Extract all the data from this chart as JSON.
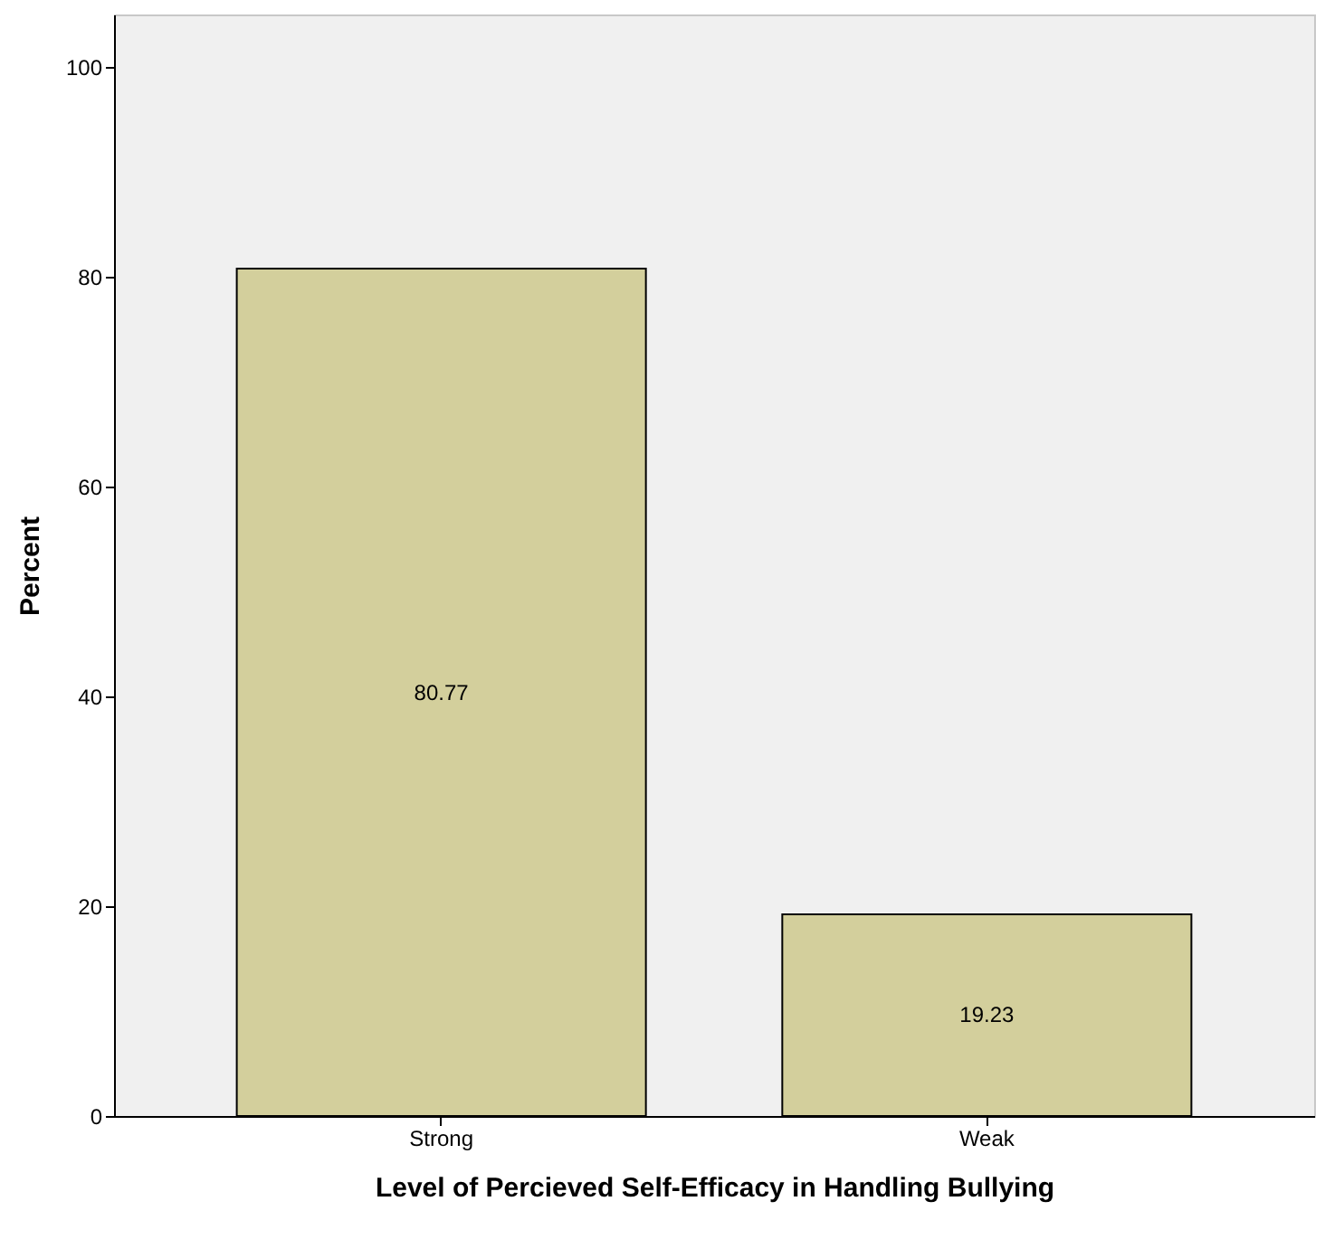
{
  "chart_data": {
    "type": "bar",
    "xlabel": "Level of Percieved Self-Efficacy in Handling Bullying",
    "ylabel": "Percent",
    "categories": [
      "Strong",
      "Weak"
    ],
    "values": [
      80.77,
      19.23
    ],
    "color": "#d3cf9c",
    "ylim": [
      0,
      105
    ],
    "yticks": [
      0,
      20,
      40,
      60,
      80,
      100
    ],
    "grid": false,
    "data_labels": true
  }
}
